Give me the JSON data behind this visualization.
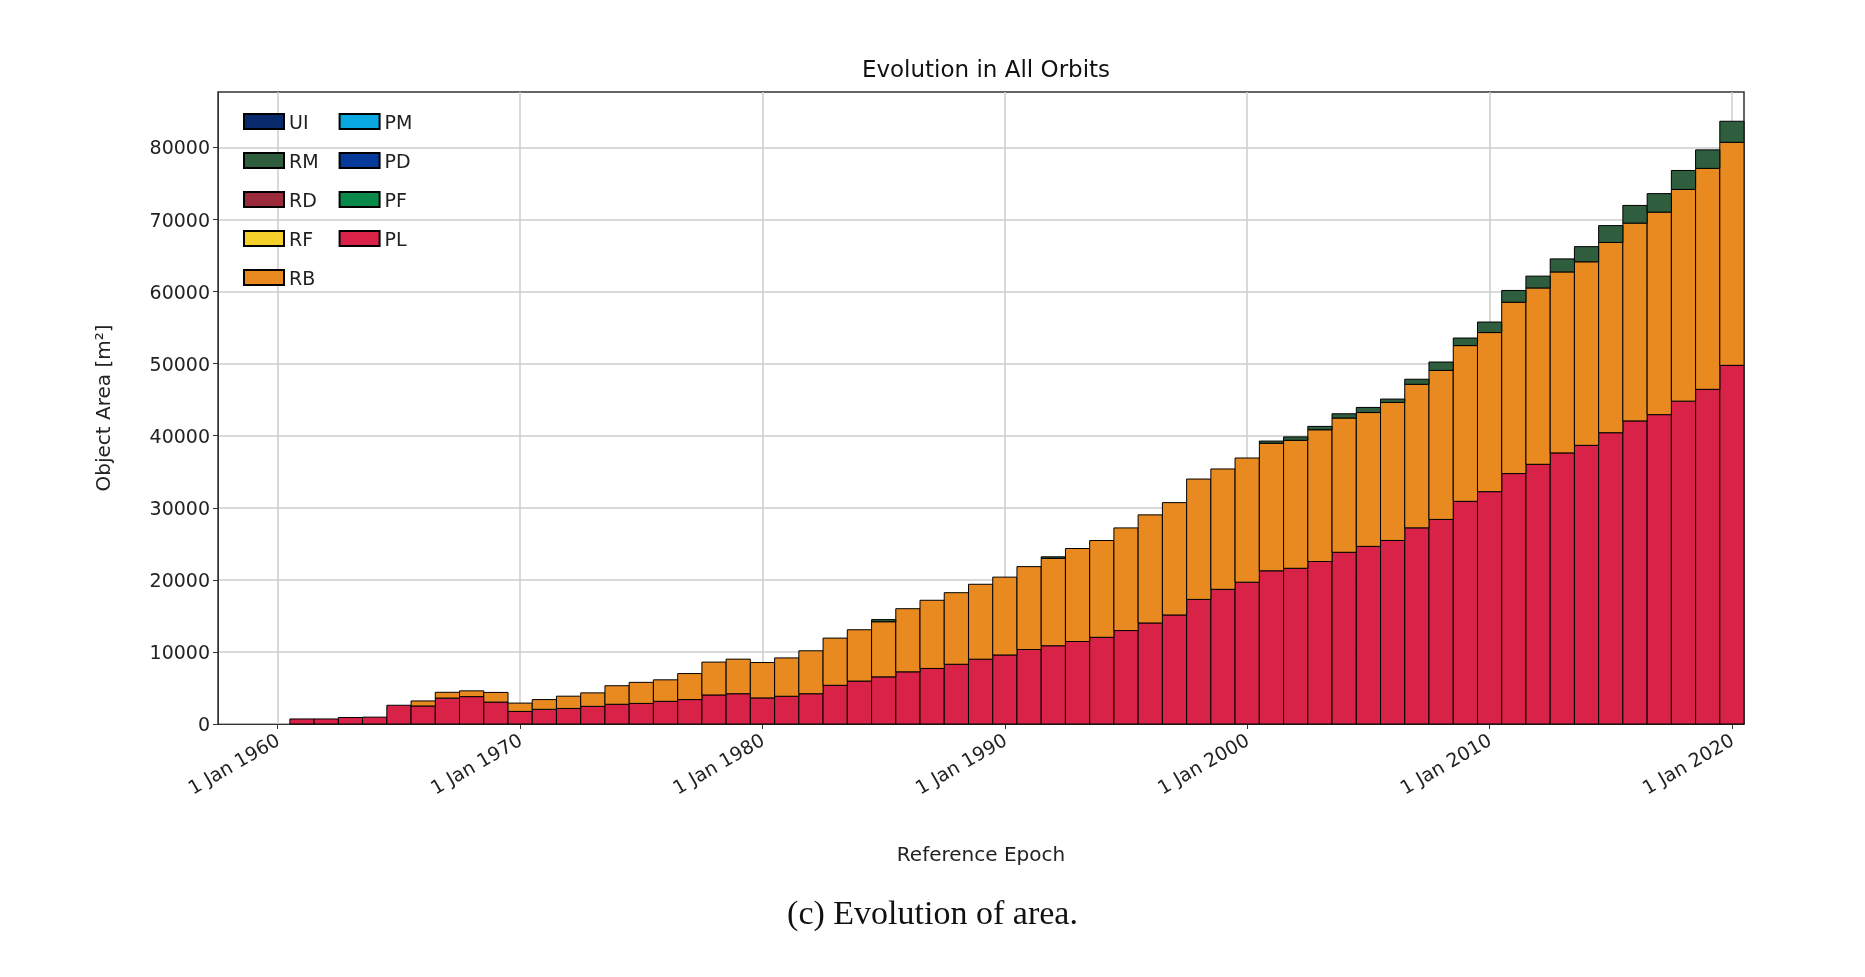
{
  "chart_data": {
    "type": "bar",
    "stacked": true,
    "title": "Evolution in All Orbits",
    "xlabel": "Reference Epoch",
    "ylabel": "Object Area [m²]",
    "x": [
      "1961",
      "1962",
      "1963",
      "1964",
      "1965",
      "1966",
      "1967",
      "1968",
      "1969",
      "1970",
      "1971",
      "1972",
      "1973",
      "1974",
      "1975",
      "1976",
      "1977",
      "1978",
      "1979",
      "1980",
      "1981",
      "1982",
      "1983",
      "1984",
      "1985",
      "1986",
      "1987",
      "1988",
      "1989",
      "1990",
      "1991",
      "1992",
      "1993",
      "1994",
      "1995",
      "1996",
      "1997",
      "1998",
      "1999",
      "2000",
      "2001",
      "2002",
      "2003",
      "2004",
      "2005",
      "2006",
      "2007",
      "2008",
      "2009",
      "2010",
      "2011",
      "2012",
      "2013",
      "2014",
      "2015",
      "2016",
      "2017",
      "2018",
      "2019",
      "2020"
    ],
    "series": [
      {
        "name": "PL",
        "color": "#d82248",
        "values": [
          700,
          700,
          900,
          950,
          2600,
          2500,
          3600,
          3800,
          3040,
          1750,
          2040,
          2160,
          2450,
          2740,
          2860,
          3150,
          3390,
          4030,
          4200,
          3620,
          3850,
          4200,
          5370,
          5960,
          6540,
          7240,
          7710,
          8290,
          8990,
          9580,
          10340,
          10860,
          11450,
          12030,
          12970,
          14020,
          15130,
          17290,
          18690,
          19680,
          21260,
          21610,
          22550,
          23830,
          24650,
          25470,
          27220,
          28390,
          30900,
          32240,
          34750,
          36040,
          37620,
          38670,
          40420,
          42060,
          42930,
          44800,
          46440,
          49770
        ]
      },
      {
        "name": "PF",
        "color": "#0a8a4a",
        "values": [
          0,
          0,
          0,
          0,
          0,
          0,
          0,
          0,
          0,
          0,
          0,
          0,
          0,
          0,
          0,
          0,
          0,
          0,
          0,
          0,
          0,
          0,
          0,
          0,
          0,
          0,
          0,
          0,
          0,
          0,
          0,
          0,
          0,
          0,
          0,
          0,
          0,
          0,
          0,
          0,
          0,
          0,
          0,
          0,
          0,
          0,
          0,
          0,
          0,
          0,
          0,
          0,
          0,
          0,
          0,
          0,
          0,
          0,
          0,
          0
        ]
      },
      {
        "name": "PD",
        "color": "#063a9a",
        "values": [
          0,
          0,
          0,
          0,
          0,
          0,
          0,
          0,
          0,
          0,
          0,
          0,
          0,
          0,
          0,
          0,
          0,
          0,
          0,
          0,
          0,
          0,
          0,
          0,
          0,
          0,
          0,
          0,
          0,
          0,
          0,
          0,
          0,
          0,
          0,
          0,
          0,
          0,
          0,
          0,
          0,
          0,
          0,
          0,
          0,
          0,
          0,
          0,
          0,
          0,
          0,
          0,
          0,
          0,
          0,
          0,
          0,
          0,
          0,
          0
        ]
      },
      {
        "name": "PM",
        "color": "#0aa8e0",
        "values": [
          0,
          0,
          0,
          0,
          0,
          0,
          0,
          0,
          0,
          0,
          0,
          0,
          0,
          0,
          0,
          0,
          0,
          0,
          0,
          0,
          0,
          0,
          0,
          0,
          0,
          0,
          0,
          0,
          0,
          0,
          0,
          0,
          0,
          0,
          0,
          0,
          0,
          0,
          0,
          0,
          0,
          0,
          0,
          0,
          0,
          0,
          0,
          0,
          0,
          0,
          0,
          0,
          0,
          0,
          0,
          0,
          0,
          0,
          0,
          0
        ]
      },
      {
        "name": "RB",
        "color": "#e88a20",
        "values": [
          0,
          0,
          0,
          0,
          null,
          700,
          800,
          800,
          1340,
          1150,
          1350,
          1700,
          1870,
          2570,
          2920,
          2980,
          3610,
          4560,
          4800,
          4910,
          5320,
          5960,
          6550,
          7120,
          7650,
          8760,
          9460,
          9930,
          10400,
          10800,
          11500,
          12140,
          12900,
          13430,
          14240,
          15000,
          15590,
          16700,
          16700,
          17230,
          17700,
          17760,
          18280,
          18630,
          18570,
          19150,
          19920,
          20680,
          21610,
          22080,
          23780,
          24470,
          25110,
          25470,
          26400,
          27450,
          28100,
          29380,
          30660,
          30950
        ]
      },
      {
        "name": "RF",
        "color": "#f5d02a",
        "values": [
          0,
          0,
          0,
          0,
          0,
          0,
          0,
          0,
          0,
          0,
          0,
          0,
          0,
          0,
          0,
          0,
          0,
          0,
          0,
          0,
          0,
          0,
          0,
          0,
          0,
          0,
          0,
          0,
          0,
          0,
          0,
          0,
          0,
          0,
          0,
          0,
          0,
          0,
          0,
          0,
          0,
          0,
          0,
          0,
          0,
          0,
          0,
          0,
          0,
          0,
          0,
          0,
          0,
          0,
          0,
          0,
          0,
          0,
          0,
          0
        ]
      },
      {
        "name": "RD",
        "color": "#9b2a3a",
        "values": [
          0,
          0,
          0,
          0,
          0,
          0,
          0,
          0,
          0,
          0,
          0,
          0,
          0,
          0,
          0,
          0,
          0,
          0,
          0,
          0,
          0,
          0,
          0,
          0,
          0,
          0,
          0,
          0,
          0,
          0,
          0,
          0,
          0,
          0,
          0,
          0,
          0,
          0,
          0,
          0,
          0,
          0,
          0,
          0,
          0,
          0,
          0,
          0,
          0,
          0,
          0,
          0,
          0,
          0,
          0,
          0,
          0,
          0,
          0,
          0
        ]
      },
      {
        "name": "RM",
        "color": "#2e5e3e",
        "values": [
          0,
          0,
          0,
          0,
          0,
          0,
          0,
          0,
          0,
          0,
          0,
          0,
          0,
          0,
          0,
          0,
          0,
          0,
          0,
          0,
          0,
          0,
          0,
          0,
          300,
          0,
          0,
          0,
          0,
          0,
          0,
          200,
          0,
          0,
          0,
          0,
          0,
          0,
          0,
          0,
          300,
          470,
          470,
          590,
          710,
          470,
          700,
          1160,
          1050,
          1460,
          1630,
          1640,
          1810,
          2100,
          2340,
          2450,
          2570,
          2630,
          2570,
          2920
        ]
      },
      {
        "name": "UI",
        "color": "#0a2a6e",
        "values": [
          0,
          0,
          0,
          0,
          0,
          0,
          0,
          0,
          0,
          0,
          0,
          0,
          0,
          0,
          0,
          0,
          0,
          0,
          0,
          0,
          0,
          0,
          0,
          0,
          0,
          0,
          0,
          0,
          0,
          0,
          0,
          0,
          0,
          0,
          0,
          0,
          0,
          0,
          0,
          0,
          0,
          0,
          0,
          0,
          0,
          0,
          0,
          0,
          0,
          0,
          0,
          0,
          0,
          0,
          0,
          0,
          0,
          0,
          0,
          0
        ]
      }
    ],
    "xlim": [
      "1957-07-15",
      "2020-07-01"
    ],
    "xticks": [
      {
        "value": "1960-01-01",
        "label": "1 Jan 1960"
      },
      {
        "value": "1970-01-01",
        "label": "1 Jan 1970"
      },
      {
        "value": "1980-01-01",
        "label": "1 Jan 1980"
      },
      {
        "value": "1990-01-01",
        "label": "1 Jan 1990"
      },
      {
        "value": "2000-01-01",
        "label": "1 Jan 2000"
      },
      {
        "value": "2010-01-01",
        "label": "1 Jan 2010"
      },
      {
        "value": "2020-01-01",
        "label": "1 Jan 2020"
      }
    ],
    "ylim": [
      0,
      87700
    ],
    "yticks": [
      0,
      10000,
      20000,
      30000,
      40000,
      50000,
      60000,
      70000,
      80000
    ],
    "grid": true,
    "legend": "top left",
    "annotations": [
      "(c) Evolution of area."
    ]
  }
}
